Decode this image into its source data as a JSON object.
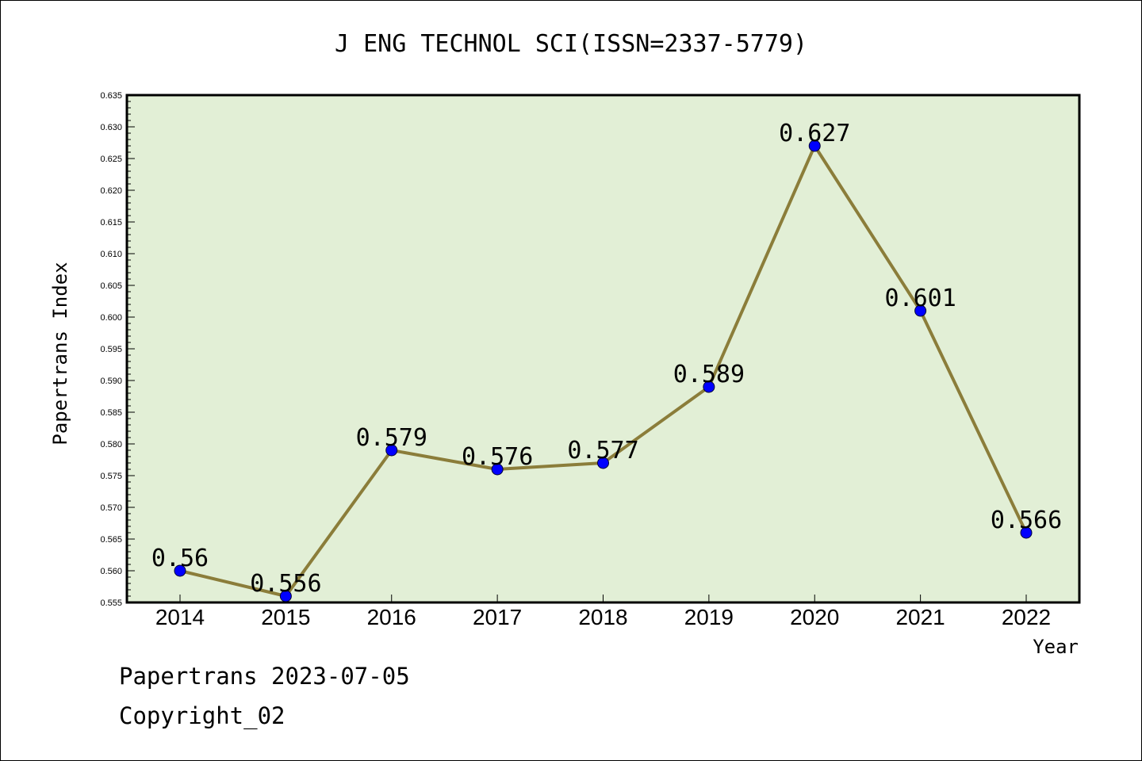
{
  "chart_data": {
    "type": "line",
    "title": "J ENG TECHNOL SCI(ISSN=2337-5779)",
    "xlabel": "Year",
    "ylabel": "Papertrans Index",
    "categories": [
      "2014",
      "2015",
      "2016",
      "2017",
      "2018",
      "2019",
      "2020",
      "2021",
      "2022"
    ],
    "series": [
      {
        "values": [
          0.56,
          0.556,
          0.579,
          0.576,
          0.577,
          0.589,
          0.627,
          0.601,
          0.566
        ]
      }
    ],
    "data_labels": [
      "0.56",
      "0.556",
      "0.579",
      "0.576",
      "0.577",
      "0.589",
      "0.627",
      "0.601",
      "0.566"
    ],
    "ylim": [
      0.555,
      0.635
    ],
    "yticks": [
      "0.555",
      "0.560",
      "0.565",
      "0.570",
      "0.575",
      "0.580",
      "0.585",
      "0.590",
      "0.595",
      "0.600",
      "0.605",
      "0.610",
      "0.615",
      "0.620",
      "0.625",
      "0.630",
      "0.635"
    ],
    "grid": false,
    "legend": "none",
    "colors": {
      "plot_background": "#e2efd6",
      "line": "#8b7d3a",
      "marker": "#0000ff"
    }
  },
  "footer": {
    "date_text": "Papertrans 2023-07-05",
    "copyright_text": "Copyright_02"
  }
}
